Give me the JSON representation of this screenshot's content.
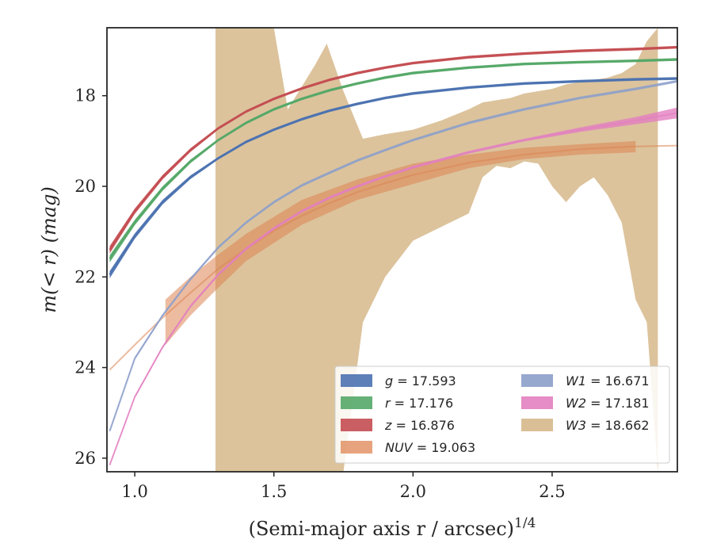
{
  "chart_data": {
    "type": "line",
    "xlabel": "(Semi-major axis r / arcsec)",
    "xlabel_superscript": "1/4",
    "ylabel": "m(< r) (mag)",
    "xlim": [
      0.9,
      2.95
    ],
    "ylim": [
      26.3,
      16.5
    ],
    "y_inverted": true,
    "grid": false,
    "legend_position": "lower-right",
    "x_ticks": [
      1.0,
      1.5,
      2.0,
      2.5
    ],
    "x_tick_labels": [
      "1.0",
      "1.5",
      "2.0",
      "2.5"
    ],
    "y_ticks": [
      18,
      20,
      22,
      24,
      26
    ],
    "y_tick_labels": [
      "18",
      "20",
      "22",
      "24",
      "26"
    ],
    "legend_column_1": [
      {
        "series": "g",
        "label": "g = 17.593"
      },
      {
        "series": "r",
        "label": "r = 17.176"
      },
      {
        "series": "z",
        "label": "z = 16.876"
      },
      {
        "series": "NUV",
        "label": "NUV = 19.063"
      }
    ],
    "legend_column_2": [
      {
        "series": "W1",
        "label": "W1 = 16.671"
      },
      {
        "series": "W2",
        "label": "W2 = 17.181"
      },
      {
        "series": "W3",
        "label": "W3 = 18.662"
      }
    ],
    "series": [
      {
        "name": "g",
        "color": "#4c72b0",
        "x": [
          0.91,
          1.0,
          1.1,
          1.2,
          1.3,
          1.4,
          1.5,
          1.6,
          1.7,
          1.8,
          1.9,
          2.0,
          2.2,
          2.4,
          2.6,
          2.8,
          2.95
        ],
        "y": [
          21.95,
          21.1,
          20.35,
          19.8,
          19.38,
          19.02,
          18.75,
          18.52,
          18.33,
          18.18,
          18.05,
          17.95,
          17.82,
          17.73,
          17.68,
          17.64,
          17.62
        ],
        "half_width": [
          0.08,
          0.06,
          0.05,
          0.04,
          0.03,
          0.03,
          0.03,
          0.03,
          0.03,
          0.03,
          0.03,
          0.03,
          0.03,
          0.03,
          0.03,
          0.03,
          0.03
        ]
      },
      {
        "name": "r",
        "color": "#55a868",
        "x": [
          0.91,
          1.0,
          1.1,
          1.2,
          1.3,
          1.4,
          1.5,
          1.6,
          1.7,
          1.8,
          1.9,
          2.0,
          2.2,
          2.4,
          2.6,
          2.8,
          2.95
        ],
        "y": [
          21.6,
          20.8,
          20.05,
          19.45,
          18.98,
          18.6,
          18.3,
          18.07,
          17.88,
          17.73,
          17.6,
          17.5,
          17.38,
          17.3,
          17.26,
          17.23,
          17.2
        ],
        "half_width": [
          0.08,
          0.06,
          0.05,
          0.04,
          0.03,
          0.03,
          0.03,
          0.03,
          0.03,
          0.03,
          0.03,
          0.03,
          0.03,
          0.03,
          0.03,
          0.03,
          0.03
        ]
      },
      {
        "name": "z",
        "color": "#c44e52",
        "x": [
          0.91,
          1.0,
          1.1,
          1.2,
          1.3,
          1.4,
          1.5,
          1.6,
          1.7,
          1.8,
          1.9,
          2.0,
          2.2,
          2.4,
          2.6,
          2.8,
          2.95
        ],
        "y": [
          21.4,
          20.55,
          19.8,
          19.2,
          18.72,
          18.35,
          18.07,
          17.84,
          17.65,
          17.5,
          17.38,
          17.28,
          17.15,
          17.07,
          17.01,
          16.97,
          16.93
        ],
        "half_width": [
          0.08,
          0.06,
          0.05,
          0.04,
          0.03,
          0.03,
          0.03,
          0.03,
          0.03,
          0.03,
          0.03,
          0.03,
          0.03,
          0.03,
          0.03,
          0.03,
          0.03
        ]
      },
      {
        "name": "NUV",
        "color": "#dd8452",
        "x": [
          0.91,
          1.0,
          1.1,
          1.2,
          1.3,
          1.4,
          1.5,
          1.6,
          1.7,
          1.8,
          1.9,
          2.0,
          2.2,
          2.4,
          2.6,
          2.8,
          2.95
        ],
        "y": [
          24.05,
          23.5,
          22.9,
          22.35,
          21.82,
          21.38,
          20.98,
          20.65,
          20.37,
          20.13,
          19.93,
          19.75,
          19.48,
          19.3,
          19.18,
          19.12,
          19.1
        ],
        "band_x": [
          1.11,
          1.2,
          1.29,
          1.4,
          1.6,
          1.8,
          2.0,
          2.2,
          2.4,
          2.6,
          2.8
        ],
        "band_lower": [
          22.5,
          22.0,
          21.55,
          21.05,
          20.3,
          19.85,
          19.5,
          19.3,
          19.15,
          19.07,
          19.0
        ],
        "band_upper": [
          23.5,
          22.85,
          22.3,
          21.65,
          20.85,
          20.3,
          19.95,
          19.6,
          19.4,
          19.3,
          19.25
        ]
      },
      {
        "name": "W1",
        "color": "#8c9fca",
        "x": [
          0.91,
          1.0,
          1.1,
          1.2,
          1.3,
          1.4,
          1.5,
          1.6,
          1.7,
          1.8,
          1.9,
          2.0,
          2.2,
          2.4,
          2.6,
          2.8,
          2.95
        ],
        "y": [
          25.4,
          23.8,
          22.85,
          22.05,
          21.35,
          20.8,
          20.35,
          19.98,
          19.7,
          19.43,
          19.2,
          18.98,
          18.6,
          18.3,
          18.05,
          17.85,
          17.68
        ],
        "half_width": [
          0.03,
          0.03,
          0.03,
          0.03,
          0.03,
          0.03,
          0.03,
          0.03,
          0.03,
          0.03,
          0.03,
          0.03,
          0.03,
          0.03,
          0.03,
          0.03,
          0.03
        ]
      },
      {
        "name": "W2",
        "color": "#e37fc0",
        "x": [
          0.91,
          1.0,
          1.1,
          1.2,
          1.3,
          1.4,
          1.5,
          1.6,
          1.7,
          1.8,
          1.9,
          2.0,
          2.2,
          2.4,
          2.6,
          2.8,
          2.95
        ],
        "y": [
          26.15,
          24.65,
          23.55,
          22.65,
          21.95,
          21.38,
          20.93,
          20.55,
          20.25,
          20.0,
          19.78,
          19.58,
          19.25,
          18.98,
          18.75,
          18.55,
          18.38
        ],
        "half_width": [
          0.03,
          0.03,
          0.03,
          0.03,
          0.03,
          0.03,
          0.03,
          0.03,
          0.03,
          0.03,
          0.03,
          0.03,
          0.03,
          0.03,
          0.05,
          0.08,
          0.12
        ]
      },
      {
        "name": "W3",
        "color": "#d6b88b",
        "x": [
          1.29,
          1.3,
          1.4,
          1.5,
          1.55,
          1.6,
          1.7,
          1.8,
          1.9,
          2.0,
          2.1,
          2.2,
          2.3,
          2.4,
          2.5,
          2.6,
          2.7,
          2.8,
          2.88
        ],
        "y": [
          19.4,
          19.5,
          19.4,
          19.3,
          19.2,
          19.15,
          19.05,
          19.0,
          18.95,
          18.9,
          18.85,
          18.8,
          18.78,
          18.75,
          18.72,
          18.7,
          18.68,
          18.67,
          18.662
        ],
        "band_x": [
          1.29,
          1.3,
          1.4,
          1.5,
          1.55,
          1.6,
          1.65,
          1.69,
          1.75,
          1.82,
          1.9,
          2.0,
          2.1,
          2.2,
          2.25,
          2.3,
          2.35,
          2.4,
          2.45,
          2.5,
          2.55,
          2.6,
          2.65,
          2.7,
          2.75,
          2.8,
          2.84,
          2.88
        ],
        "band_lower": [
          16.5,
          16.5,
          16.5,
          16.5,
          18.3,
          17.8,
          17.3,
          16.85,
          17.9,
          18.95,
          18.85,
          18.75,
          18.55,
          18.3,
          18.15,
          18.1,
          18.05,
          17.95,
          17.9,
          17.85,
          17.75,
          17.7,
          17.65,
          17.6,
          17.5,
          17.3,
          16.8,
          16.5
        ],
        "band_upper": [
          26.3,
          26.3,
          26.3,
          26.3,
          26.3,
          26.3,
          26.3,
          26.3,
          26.3,
          23.0,
          22.0,
          21.2,
          20.9,
          20.6,
          19.8,
          19.55,
          19.6,
          19.45,
          19.5,
          20.0,
          20.35,
          20.0,
          19.8,
          20.2,
          20.8,
          22.5,
          23.0,
          26.3
        ]
      }
    ]
  }
}
